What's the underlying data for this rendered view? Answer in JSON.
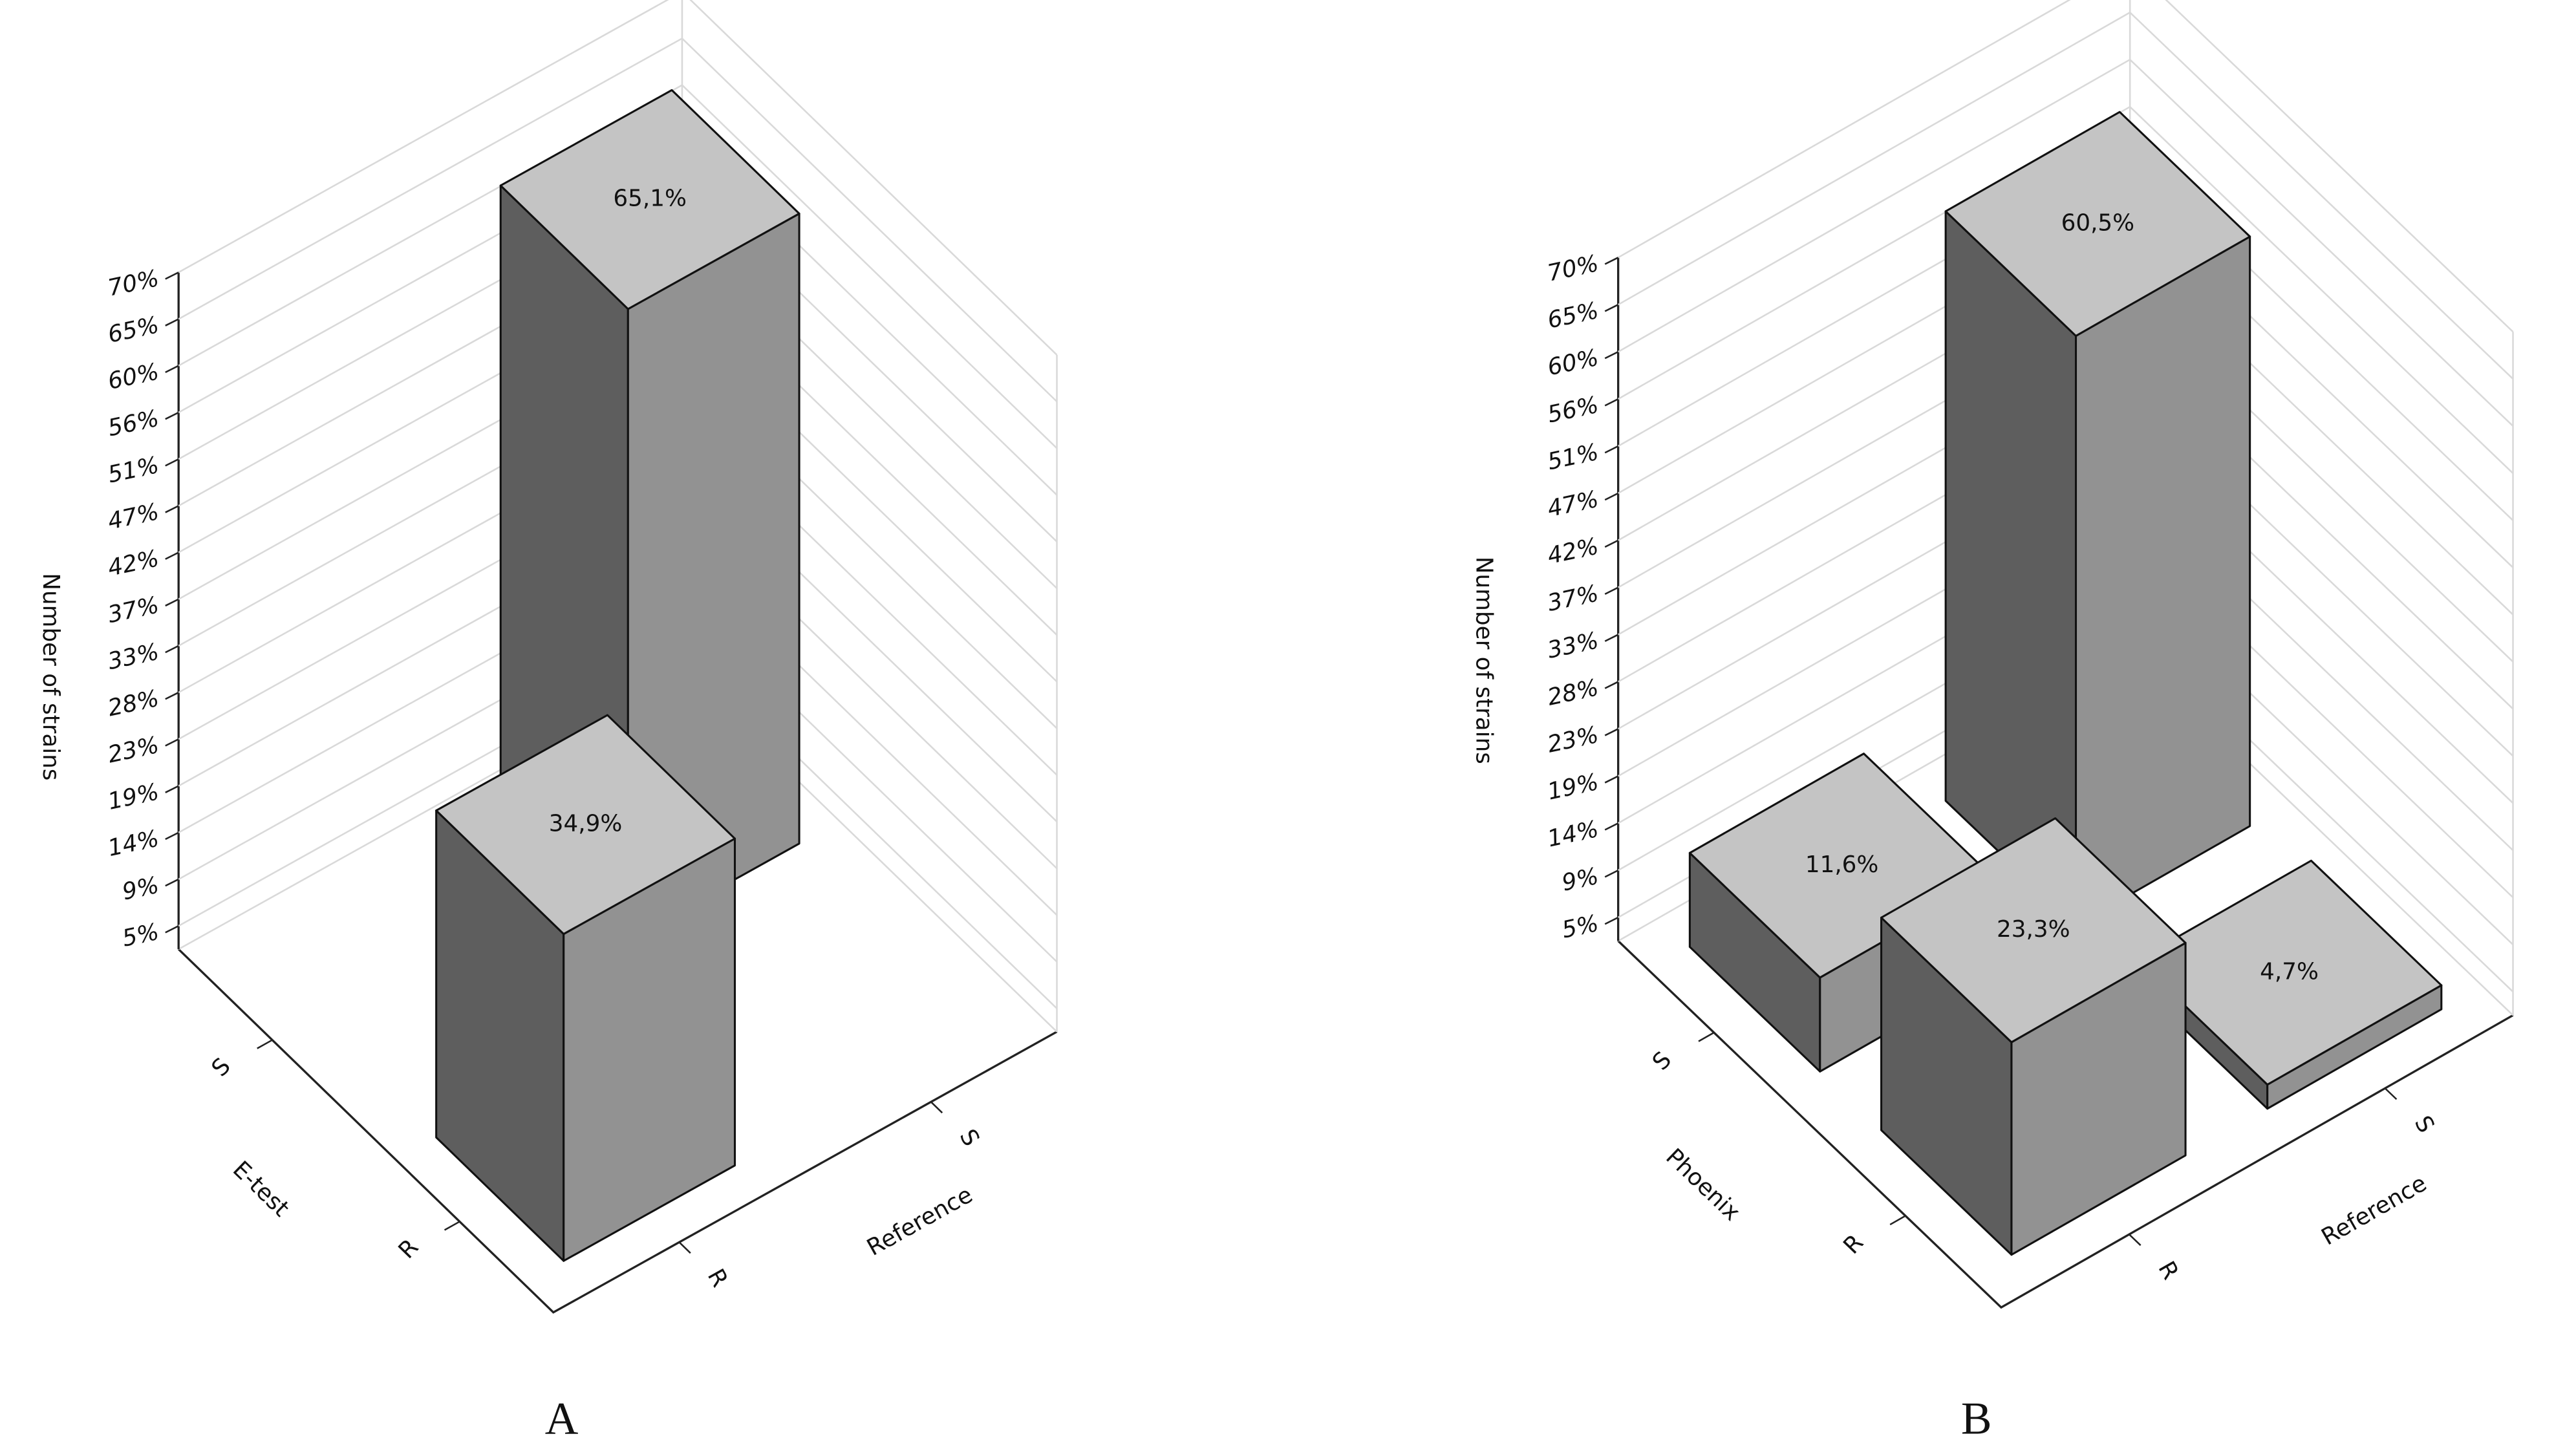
{
  "chart_data": [
    {
      "type": "bar3d",
      "panel_label": "A",
      "y_label": "Number of strains",
      "x_label": "E-test",
      "x_categories": [
        "S",
        "R"
      ],
      "z_label": "Reference",
      "z_categories": [
        "R",
        "S"
      ],
      "bars": {
        "x": [
          "S",
          "R"
        ],
        "z": [
          "S",
          "R"
        ],
        "values": [
          65.1,
          34.9
        ],
        "value_labels": [
          "65,1%",
          "34,9%"
        ]
      },
      "ylim": [
        2.33,
        69.77
      ],
      "yticks": [
        {
          "value": 4.65,
          "label": "5%"
        },
        {
          "value": 9.3,
          "label": "9%"
        },
        {
          "value": 13.95,
          "label": "14%"
        },
        {
          "value": 18.6,
          "label": "19%"
        },
        {
          "value": 23.26,
          "label": "23%"
        },
        {
          "value": 27.91,
          "label": "28%"
        },
        {
          "value": 32.56,
          "label": "33%"
        },
        {
          "value": 37.21,
          "label": "37%"
        },
        {
          "value": 41.86,
          "label": "42%"
        },
        {
          "value": 46.51,
          "label": "47%"
        },
        {
          "value": 51.16,
          "label": "51%"
        },
        {
          "value": 55.81,
          "label": "56%"
        },
        {
          "value": 60.47,
          "label": "60%"
        },
        {
          "value": 65.12,
          "label": "65%"
        },
        {
          "value": 69.77,
          "label": "70%"
        }
      ],
      "grid": true,
      "colors": {
        "top": "#c4c4c4",
        "left": "#5e5e5e",
        "right": "#929292"
      }
    },
    {
      "type": "bar3d",
      "panel_label": "B",
      "y_label": "Number of strains",
      "x_label": "Phoenix",
      "x_categories": [
        "S",
        "R"
      ],
      "z_label": "Reference",
      "z_categories": [
        "R",
        "S"
      ],
      "bars": {
        "x": [
          "S",
          "S",
          "R",
          "R"
        ],
        "z": [
          "S",
          "R",
          "R",
          "S"
        ],
        "values": [
          60.5,
          11.6,
          23.3,
          4.7
        ],
        "value_labels": [
          "60,5%",
          "11,6%",
          "23,3%",
          "4,7%"
        ]
      },
      "ylim": [
        2.33,
        69.77
      ],
      "yticks": [
        {
          "value": 4.65,
          "label": "5%"
        },
        {
          "value": 9.3,
          "label": "9%"
        },
        {
          "value": 13.95,
          "label": "14%"
        },
        {
          "value": 18.6,
          "label": "19%"
        },
        {
          "value": 23.26,
          "label": "23%"
        },
        {
          "value": 27.91,
          "label": "28%"
        },
        {
          "value": 32.56,
          "label": "33%"
        },
        {
          "value": 37.21,
          "label": "37%"
        },
        {
          "value": 41.86,
          "label": "42%"
        },
        {
          "value": 46.51,
          "label": "47%"
        },
        {
          "value": 51.16,
          "label": "51%"
        },
        {
          "value": 55.81,
          "label": "56%"
        },
        {
          "value": 60.47,
          "label": "60%"
        },
        {
          "value": 65.12,
          "label": "65%"
        },
        {
          "value": 69.77,
          "label": "70%"
        }
      ],
      "grid": true,
      "colors": {
        "top": "#c4c4c4",
        "left": "#5e5e5e",
        "right": "#929292"
      }
    }
  ]
}
